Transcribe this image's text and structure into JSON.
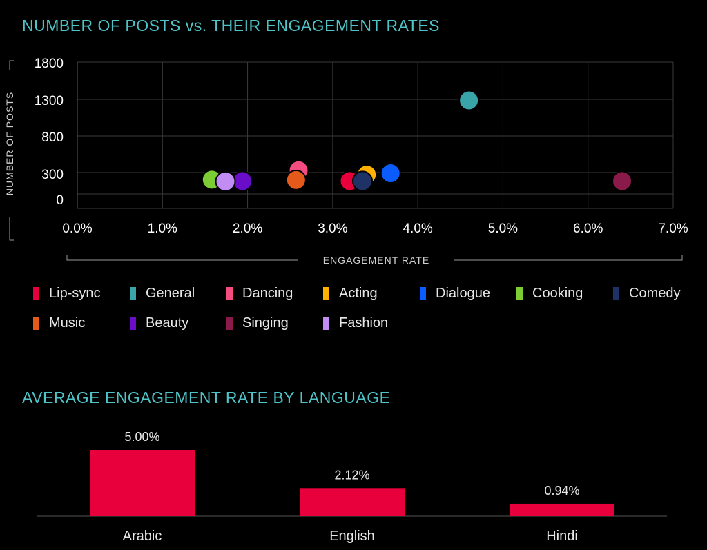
{
  "scatter": {
    "title": "NUMBER OF POSTS vs. THEIR ENGAGEMENT RATES",
    "chart_data": {
      "type": "scatter",
      "title": "NUMBER OF POSTS vs. THEIR ENGAGEMENT RATES",
      "xlabel": "ENGAGEMENT RATE",
      "ylabel": "NUMBER OF POSTS",
      "xlim": [
        0,
        7
      ],
      "ylim": [
        0,
        1800
      ],
      "x_ticks": [
        "0.0%",
        "1.0%",
        "2.0%",
        "3.0%",
        "4.0%",
        "5.0%",
        "6.0%",
        "7.0%"
      ],
      "y_ticks": [
        "1800",
        "1300",
        "800",
        "300",
        "0"
      ],
      "grid": true,
      "series": [
        {
          "name": "Lip-sync",
          "color": "#e8003d",
          "x": 3.2,
          "y": 180
        },
        {
          "name": "General",
          "color": "#3aa5a8",
          "x": 4.6,
          "y": 1280
        },
        {
          "name": "Dancing",
          "color": "#f24d7e",
          "x": 2.6,
          "y": 330
        },
        {
          "name": "Acting",
          "color": "#ffb000",
          "x": 3.4,
          "y": 270
        },
        {
          "name": "Dialogue",
          "color": "#0a5cff",
          "x": 3.68,
          "y": 290
        },
        {
          "name": "Cooking",
          "color": "#7ccc33",
          "x": 1.58,
          "y": 200
        },
        {
          "name": "Comedy",
          "color": "#1e3266",
          "x": 3.35,
          "y": 180
        },
        {
          "name": "Music",
          "color": "#e55a1a",
          "x": 2.57,
          "y": 195
        },
        {
          "name": "Beauty",
          "color": "#6a0dc9",
          "x": 1.94,
          "y": 180
        },
        {
          "name": "Singing",
          "color": "#8a1a4a",
          "x": 6.4,
          "y": 180
        },
        {
          "name": "Fashion",
          "color": "#c28cf5",
          "x": 1.74,
          "y": 175
        }
      ]
    }
  },
  "bars": {
    "title": "AVERAGE ENGAGEMENT RATE BY LANGUAGE",
    "chart_data": {
      "type": "bar",
      "title": "AVERAGE ENGAGEMENT RATE BY LANGUAGE",
      "categories": [
        "Arabic",
        "English",
        "Hindi"
      ],
      "values": [
        5.0,
        2.12,
        0.94
      ],
      "value_labels": [
        "5.00%",
        "2.12%",
        "0.94%"
      ],
      "color": "#e8003d",
      "ylim": [
        0,
        5
      ]
    }
  }
}
